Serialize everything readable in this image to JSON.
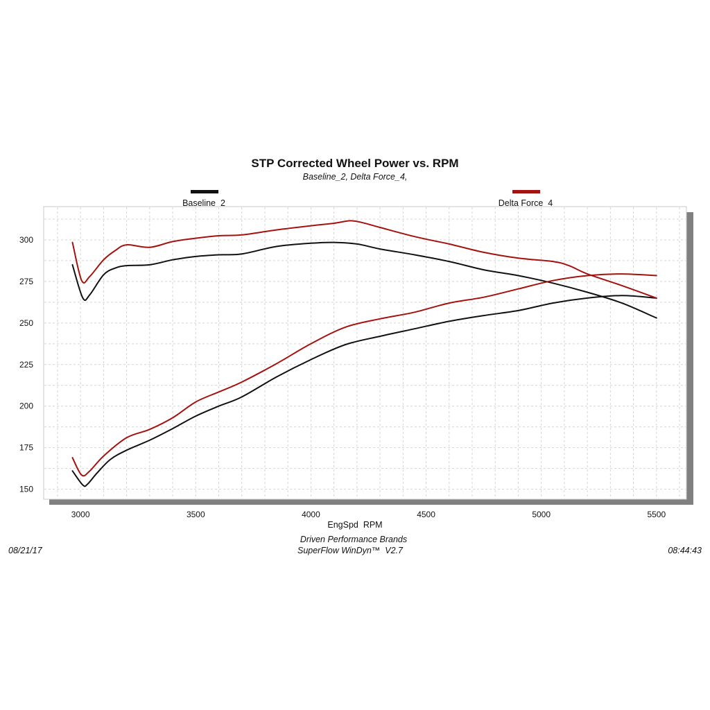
{
  "chart_data": {
    "type": "line",
    "title": "STP Corrected Wheel Power vs. RPM",
    "subtitle": "Baseline_2, Delta Force_4,",
    "xlabel": "EngSpd  RPM",
    "ylabel": "",
    "xlim": [
      2840,
      5630
    ],
    "ylim": [
      144,
      320
    ],
    "x_ticks": [
      3000,
      3500,
      4000,
      4500,
      5000,
      5500
    ],
    "y_ticks": [
      150,
      175,
      200,
      225,
      250,
      275,
      300
    ],
    "grid": true,
    "legend_position": "top",
    "series": [
      {
        "name": "Baseline_2",
        "color": "#111111",
        "curves": [
          {
            "x": [
              2965,
              3010,
              3040,
              3100,
              3150,
              3200,
              3300,
              3400,
              3500,
              3600,
              3700,
              3850,
              4000,
              4100,
              4200,
              4300,
              4450,
              4600,
              4750,
              4900,
              5050,
              5200,
              5350,
              5500
            ],
            "y": [
              285,
              265,
              267,
              279,
              283,
              284.5,
              285,
              288,
              290,
              291,
              291.5,
              296,
              298,
              298.5,
              297.5,
              294.5,
              291,
              287,
              282,
              278.5,
              274,
              268.5,
              262,
              253
            ]
          },
          {
            "x": [
              2965,
              3010,
              3030,
              3070,
              3130,
              3200,
              3300,
              3400,
              3500,
              3600,
              3700,
              3850,
              4000,
              4150,
              4300,
              4450,
              4600,
              4750,
              4900,
              5050,
              5200,
              5350,
              5500
            ],
            "y": [
              161,
              152.5,
              153,
              159.5,
              168,
              173.5,
              179.5,
              186.5,
              194,
              200,
              205.5,
              217.5,
              228,
              237,
              242,
              246.5,
              251,
              254.5,
              257.5,
              262,
              265,
              266.5,
              265
            ]
          }
        ]
      },
      {
        "name": "Delta Force_4",
        "color": "#a3120f",
        "curves": [
          {
            "x": [
              2965,
              3005,
              3040,
              3100,
              3150,
              3200,
              3300,
              3400,
              3500,
              3600,
              3700,
              3850,
              4000,
              4100,
              4170,
              4220,
              4300,
              4450,
              4600,
              4750,
              4900,
              5050,
              5120,
              5200,
              5350,
              5500
            ],
            "y": [
              298.5,
              275.5,
              278,
              288,
              293.5,
              297,
              295.5,
              299,
              301,
              302.5,
              303,
              306,
              308.5,
              310,
              311.5,
              310.5,
              307.5,
              302,
              297.5,
              292.5,
              289,
              287,
              284.5,
              279.5,
              272.5,
              265
            ]
          },
          {
            "x": [
              2965,
              3005,
              3040,
              3100,
              3200,
              3300,
              3400,
              3500,
              3600,
              3700,
              3850,
              4000,
              4150,
              4300,
              4450,
              4600,
              4750,
              4900,
              5050,
              5200,
              5350,
              5500
            ],
            "y": [
              169,
              158.5,
              161,
              170,
              181,
              186,
              193,
              202.5,
              208.5,
              214.5,
              225.5,
              237.5,
              247.5,
              252.5,
              256.5,
              262,
              265.5,
              270.5,
              275.5,
              278.5,
              279.5,
              278.5
            ]
          }
        ]
      }
    ]
  },
  "footer": {
    "company": "Driven Performance Brands",
    "software": "SuperFlow WinDyn™  V2.7",
    "date": "08/21/17",
    "time": "08:44:43"
  }
}
